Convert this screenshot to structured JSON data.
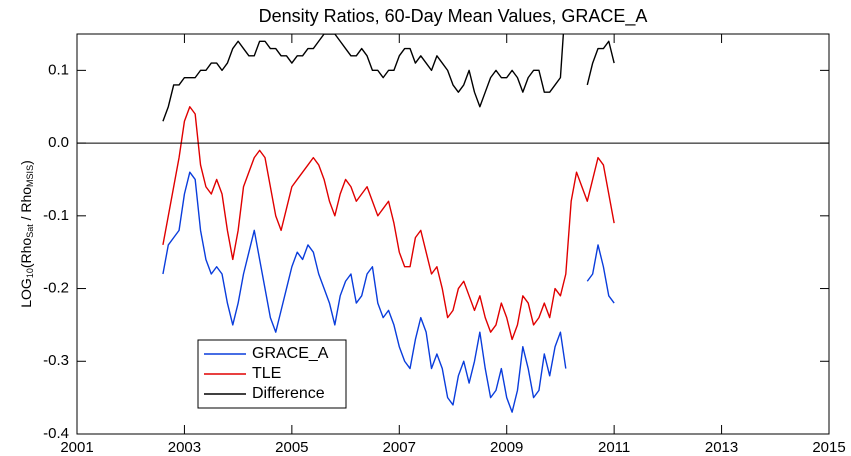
{
  "chart_data": {
    "type": "line",
    "title": "Density Ratios, 60-Day Mean Values, GRACE_A",
    "y_label": [
      {
        "text": "LOG"
      },
      {
        "text": "10",
        "sub": true
      },
      {
        "text": "(Rho"
      },
      {
        "text": "Sat",
        "sub": true
      },
      {
        "text": " / Rho"
      },
      {
        "text": "MSIS",
        "sub": true
      },
      {
        "text": ")"
      }
    ],
    "xlim": [
      2001,
      2015
    ],
    "xticks": [
      2001,
      2003,
      2005,
      2007,
      2009,
      2011,
      2013,
      2015
    ],
    "ylim": [
      -0.4,
      0.15
    ],
    "yticks": [
      -0.4,
      -0.3,
      -0.2,
      -0.1,
      {
        "value": 0,
        "label": "0.0"
      },
      0.1
    ],
    "zero_line": true,
    "legend": "lower left",
    "x": [
      2002.6,
      2002.7,
      2002.8,
      2002.9,
      2003.0,
      2003.1,
      2003.2,
      2003.3,
      2003.4,
      2003.5,
      2003.6,
      2003.7,
      2003.8,
      2003.9,
      2004.0,
      2004.1,
      2004.2,
      2004.3,
      2004.4,
      2004.5,
      2004.6,
      2004.7,
      2004.8,
      2004.9,
      2005.0,
      2005.1,
      2005.2,
      2005.3,
      2005.4,
      2005.5,
      2005.6,
      2005.7,
      2005.8,
      2005.9,
      2006.0,
      2006.1,
      2006.2,
      2006.3,
      2006.4,
      2006.5,
      2006.6,
      2006.7,
      2006.8,
      2006.9,
      2007.0,
      2007.1,
      2007.2,
      2007.3,
      2007.4,
      2007.5,
      2007.6,
      2007.7,
      2007.8,
      2007.9,
      2008.0,
      2008.1,
      2008.2,
      2008.3,
      2008.4,
      2008.5,
      2008.6,
      2008.7,
      2008.8,
      2008.9,
      2009.0,
      2009.1,
      2009.2,
      2009.3,
      2009.4,
      2009.5,
      2009.6,
      2009.7,
      2009.8,
      2009.9,
      2010.0,
      2010.1,
      2010.2,
      2010.3,
      2010.4,
      2010.5,
      2010.6,
      2010.7,
      2010.8,
      2010.9,
      2011.0
    ],
    "series": [
      {
        "name": "GRACE_A",
        "color": "#0a3ddc",
        "values": [
          -0.18,
          -0.14,
          -0.13,
          -0.12,
          -0.07,
          -0.04,
          -0.05,
          -0.12,
          -0.16,
          -0.18,
          -0.17,
          -0.18,
          -0.22,
          -0.25,
          -0.22,
          -0.18,
          -0.15,
          -0.12,
          -0.16,
          -0.2,
          -0.24,
          -0.26,
          -0.23,
          -0.2,
          -0.17,
          -0.15,
          -0.16,
          -0.14,
          -0.15,
          -0.18,
          -0.2,
          -0.22,
          -0.25,
          -0.21,
          -0.19,
          -0.18,
          -0.22,
          -0.21,
          -0.18,
          -0.17,
          -0.22,
          -0.24,
          -0.23,
          -0.25,
          -0.28,
          -0.3,
          -0.31,
          -0.27,
          -0.24,
          -0.26,
          -0.31,
          -0.29,
          -0.31,
          -0.35,
          -0.36,
          -0.32,
          -0.3,
          -0.33,
          -0.3,
          -0.26,
          -0.31,
          -0.35,
          -0.34,
          -0.31,
          -0.35,
          -0.37,
          -0.34,
          -0.28,
          -0.31,
          -0.35,
          -0.34,
          -0.29,
          -0.32,
          -0.28,
          -0.26,
          -0.31,
          null,
          null,
          null,
          -0.19,
          -0.18,
          -0.14,
          -0.17,
          -0.21,
          -0.22
        ]
      },
      {
        "name": "TLE",
        "color": "#e00000",
        "values": [
          -0.14,
          -0.1,
          -0.06,
          -0.02,
          0.03,
          0.05,
          0.04,
          -0.03,
          -0.06,
          -0.07,
          -0.05,
          -0.07,
          -0.12,
          -0.16,
          -0.12,
          -0.06,
          -0.04,
          -0.02,
          -0.01,
          -0.02,
          -0.06,
          -0.1,
          -0.12,
          -0.09,
          -0.06,
          -0.05,
          -0.04,
          -0.03,
          -0.02,
          -0.03,
          -0.05,
          -0.08,
          -0.1,
          -0.07,
          -0.05,
          -0.06,
          -0.08,
          -0.07,
          -0.06,
          -0.08,
          -0.1,
          -0.09,
          -0.08,
          -0.11,
          -0.15,
          -0.17,
          -0.17,
          -0.13,
          -0.12,
          -0.15,
          -0.18,
          -0.17,
          -0.2,
          -0.24,
          -0.23,
          -0.2,
          -0.19,
          -0.21,
          -0.23,
          -0.21,
          -0.24,
          -0.26,
          -0.25,
          -0.22,
          -0.24,
          -0.27,
          -0.25,
          -0.21,
          -0.22,
          -0.25,
          -0.24,
          -0.22,
          -0.24,
          -0.2,
          -0.21,
          -0.18,
          -0.08,
          -0.04,
          -0.06,
          -0.08,
          -0.05,
          -0.02,
          -0.03,
          -0.07,
          -0.11
        ]
      },
      {
        "name": "Difference",
        "color": "#000000",
        "values": [
          0.03,
          0.05,
          0.08,
          0.08,
          0.09,
          0.09,
          0.09,
          0.1,
          0.1,
          0.11,
          0.11,
          0.1,
          0.11,
          0.13,
          0.14,
          0.13,
          0.12,
          0.12,
          0.14,
          0.14,
          0.13,
          0.13,
          0.12,
          0.12,
          0.11,
          0.12,
          0.12,
          0.13,
          0.13,
          0.14,
          0.15,
          0.15,
          0.15,
          0.14,
          0.13,
          0.12,
          0.12,
          0.13,
          0.12,
          0.1,
          0.1,
          0.09,
          0.1,
          0.1,
          0.12,
          0.13,
          0.13,
          0.11,
          0.12,
          0.11,
          0.1,
          0.12,
          0.11,
          0.1,
          0.08,
          0.07,
          0.08,
          0.1,
          0.07,
          0.05,
          0.07,
          0.09,
          0.1,
          0.09,
          0.09,
          0.1,
          0.09,
          0.07,
          0.09,
          0.1,
          0.1,
          0.07,
          0.07,
          0.08,
          0.09,
          0.2,
          null,
          null,
          null,
          0.08,
          0.11,
          0.13,
          0.13,
          0.14,
          0.11
        ]
      }
    ]
  }
}
